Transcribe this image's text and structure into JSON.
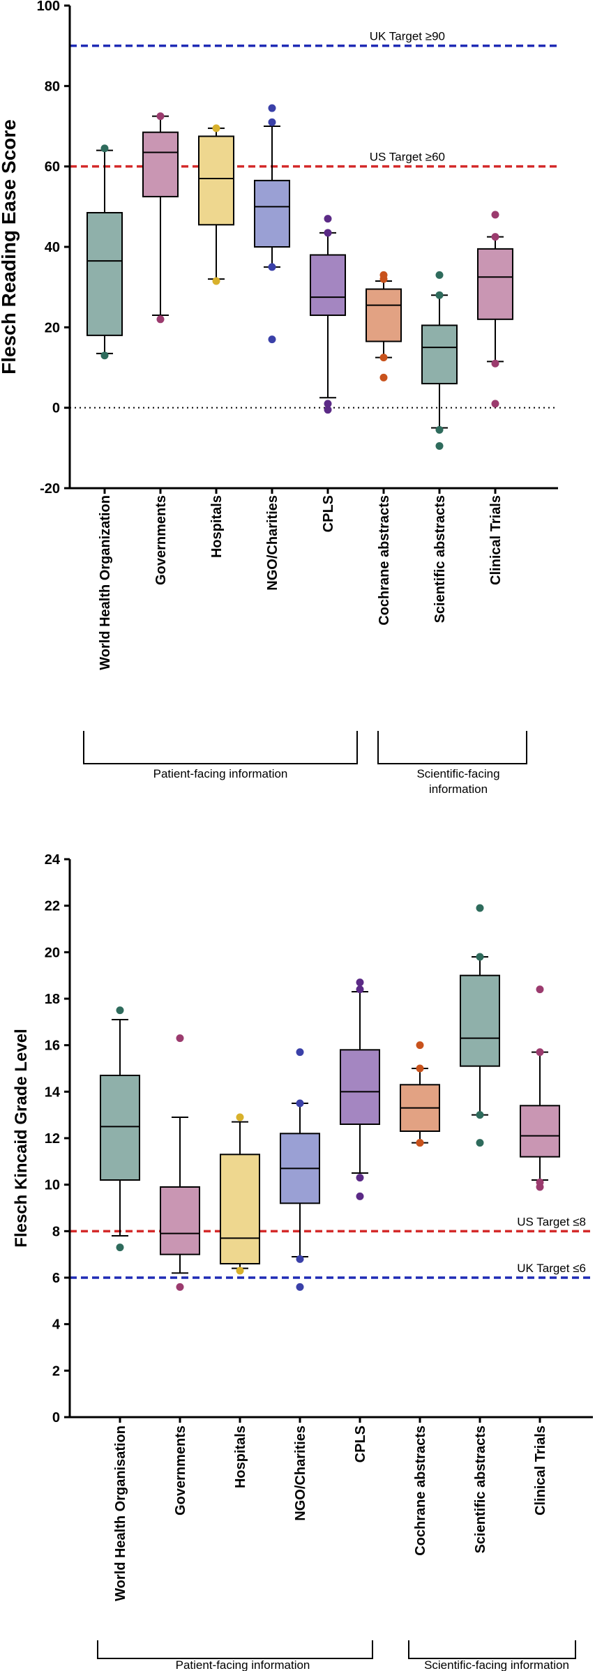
{
  "chart_data": [
    {
      "type": "box",
      "ylabel": "Flesch Reading Ease Score",
      "ylim": [
        -20,
        100
      ],
      "yticks": [
        -20,
        0,
        20,
        40,
        60,
        80,
        100
      ],
      "zero_line": 0,
      "categories": [
        "World Health Organization",
        "Governments",
        "Hospitals",
        "NGO/Charities",
        "CPLS",
        "Cochrane abstracts",
        "Scientific abstracts",
        "Clinical Trials"
      ],
      "colors": [
        "#8fb0aa",
        "#c996b3",
        "#eed78f",
        "#9aa0d4",
        "#a486c1",
        "#e2a283",
        "#8fb0aa",
        "#c996b3"
      ],
      "dot_colors": [
        "#2e6b5c",
        "#9b3b6e",
        "#d8b12c",
        "#3a40a8",
        "#5b2a86",
        "#c8521c",
        "#2e6b5c",
        "#9b3b6e"
      ],
      "boxes": [
        {
          "whisker_low": 13.5,
          "q1": 18,
          "median": 36.5,
          "q3": 48.5,
          "whisker_high": 64,
          "outliers": [
            13,
            64.5
          ]
        },
        {
          "whisker_low": 23,
          "q1": 52.5,
          "median": 63.5,
          "q3": 68.5,
          "whisker_high": 72.5,
          "outliers": [
            22,
            72.5
          ]
        },
        {
          "whisker_low": 32,
          "q1": 45.5,
          "median": 57,
          "q3": 67.5,
          "whisker_high": 69.5,
          "outliers": [
            31.5,
            69.5
          ]
        },
        {
          "whisker_low": 35,
          "q1": 40,
          "median": 50,
          "q3": 56.5,
          "whisker_high": 70,
          "outliers": [
            17,
            35,
            71,
            74.5
          ]
        },
        {
          "whisker_low": 2.5,
          "q1": 23,
          "median": 27.5,
          "q3": 38,
          "whisker_high": 43.5,
          "outliers": [
            -0.5,
            1,
            43.5,
            47
          ]
        },
        {
          "whisker_low": 12.5,
          "q1": 16.5,
          "median": 25.5,
          "q3": 29.5,
          "whisker_high": 31.5,
          "outliers": [
            7.5,
            12.5,
            32,
            33
          ]
        },
        {
          "whisker_low": -5,
          "q1": 6,
          "median": 15,
          "q3": 20.5,
          "whisker_high": 28,
          "outliers": [
            -9.5,
            -5.5,
            28,
            33
          ]
        },
        {
          "whisker_low": 11.5,
          "q1": 22,
          "median": 32.5,
          "q3": 39.5,
          "whisker_high": 42.5,
          "outliers": [
            1,
            11,
            42.5,
            48
          ]
        }
      ],
      "targets": [
        {
          "label": "UK Target ≥90",
          "value": 90,
          "color": "#1f2bb5"
        },
        {
          "label": "US Target ≥60",
          "value": 60,
          "color": "#d42a2a"
        }
      ],
      "groups": [
        {
          "label": "Patient-facing information",
          "from": 0,
          "to": 4
        },
        {
          "label": "Scientific-facing information",
          "from": 5,
          "to": 7
        }
      ]
    },
    {
      "type": "box",
      "ylabel": "Flesch Kincaid Grade Level",
      "ylim": [
        0,
        24
      ],
      "yticks": [
        0,
        2,
        4,
        6,
        8,
        10,
        12,
        14,
        16,
        18,
        20,
        22,
        24
      ],
      "categories": [
        "World Health Organisation",
        "Governments",
        "Hospitals",
        "NGO/Charities",
        "CPLS",
        "Cochrane abstracts",
        "Scientific abstracts",
        "Clinical Trials"
      ],
      "colors": [
        "#8fb0aa",
        "#c996b3",
        "#eed78f",
        "#9aa0d4",
        "#a486c1",
        "#e2a283",
        "#8fb0aa",
        "#c996b3"
      ],
      "dot_colors": [
        "#2e6b5c",
        "#9b3b6e",
        "#d8b12c",
        "#3a40a8",
        "#5b2a86",
        "#c8521c",
        "#2e6b5c",
        "#9b3b6e"
      ],
      "boxes": [
        {
          "whisker_low": 7.8,
          "q1": 10.2,
          "median": 12.5,
          "q3": 14.7,
          "whisker_high": 17.1,
          "outliers": [
            7.3,
            17.5
          ]
        },
        {
          "whisker_low": 6.2,
          "q1": 7.0,
          "median": 7.9,
          "q3": 9.9,
          "whisker_high": 12.9,
          "outliers": [
            5.6,
            16.3
          ]
        },
        {
          "whisker_low": 6.4,
          "q1": 6.6,
          "median": 7.7,
          "q3": 11.3,
          "whisker_high": 12.7,
          "outliers": [
            6.3,
            12.9
          ]
        },
        {
          "whisker_low": 6.9,
          "q1": 9.2,
          "median": 10.7,
          "q3": 12.2,
          "whisker_high": 13.5,
          "outliers": [
            5.6,
            6.8,
            13.5,
            15.7
          ]
        },
        {
          "whisker_low": 10.5,
          "q1": 12.6,
          "median": 14.0,
          "q3": 15.8,
          "whisker_high": 18.3,
          "outliers": [
            9.5,
            10.3,
            18.4,
            18.7
          ]
        },
        {
          "whisker_low": 11.8,
          "q1": 12.3,
          "median": 13.3,
          "q3": 14.3,
          "whisker_high": 15.0,
          "outliers": [
            11.8,
            11.8,
            15.0,
            16.0
          ]
        },
        {
          "whisker_low": 13.0,
          "q1": 15.1,
          "median": 16.3,
          "q3": 19.0,
          "whisker_high": 19.8,
          "outliers": [
            11.8,
            13.0,
            19.8,
            21.9
          ]
        },
        {
          "whisker_low": 10.2,
          "q1": 11.2,
          "median": 12.1,
          "q3": 13.4,
          "whisker_high": 15.7,
          "outliers": [
            9.9,
            10.1,
            15.7,
            18.4
          ]
        }
      ],
      "targets": [
        {
          "label": "US Target ≤8",
          "value": 8,
          "color": "#d42a2a"
        },
        {
          "label": "UK Target ≤6",
          "value": 6,
          "color": "#1f2bb5"
        }
      ],
      "groups": [
        {
          "label": "Patient-facing information",
          "from": 0,
          "to": 4
        },
        {
          "label": "Scientific-facing information",
          "from": 5,
          "to": 7
        }
      ]
    }
  ]
}
